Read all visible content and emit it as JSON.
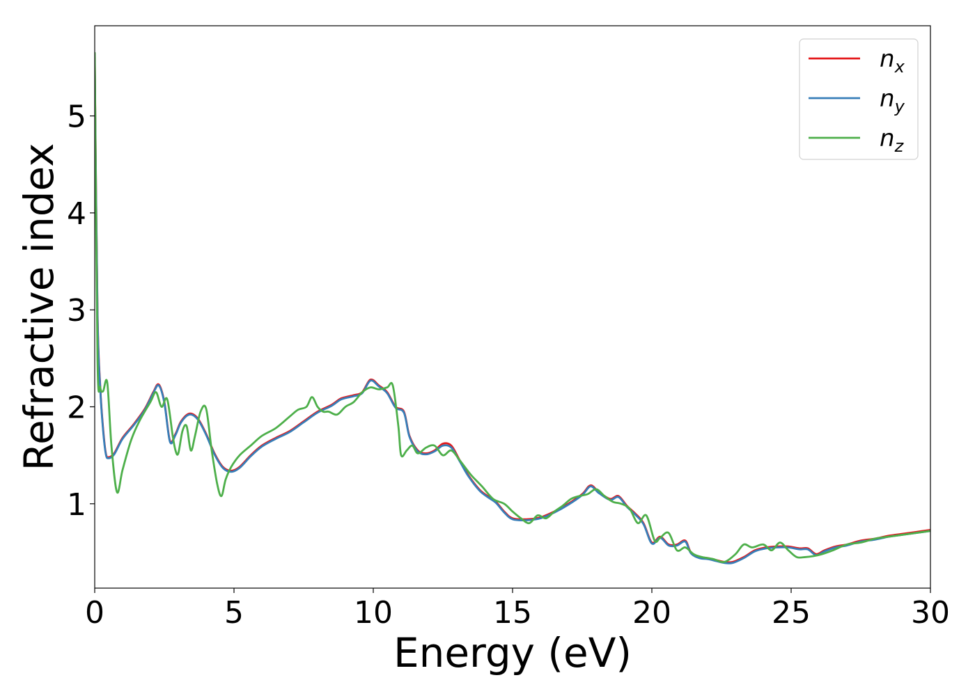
{
  "chart_data": {
    "type": "line",
    "title": "",
    "xlabel": "Energy (eV)",
    "ylabel": "Refractive index",
    "xlim": [
      0,
      30
    ],
    "ylim": [
      0.13,
      5.93
    ],
    "xticks": [
      0,
      5,
      10,
      15,
      20,
      25,
      30
    ],
    "yticks": [
      1,
      2,
      3,
      4,
      5
    ],
    "grid": false,
    "legend_position": "top-right",
    "series": [
      {
        "name": "n_x",
        "label_base": "n",
        "label_sub": "x",
        "color": "#e41a1c",
        "x": [
          0,
          0.1,
          0.2,
          0.3,
          0.4,
          0.5,
          0.7,
          1.0,
          1.4,
          1.8,
          2.1,
          2.3,
          2.5,
          2.7,
          2.9,
          3.1,
          3.4,
          3.7,
          4.0,
          4.3,
          4.6,
          4.9,
          5.2,
          5.6,
          6.0,
          6.5,
          7.0,
          7.5,
          8.0,
          8.5,
          8.8,
          9.0,
          9.3,
          9.6,
          9.9,
          10.2,
          10.5,
          10.8,
          11.1,
          11.3,
          11.6,
          11.9,
          12.2,
          12.5,
          12.8,
          13.1,
          13.4,
          13.8,
          14.1,
          14.4,
          14.7,
          15.0,
          15.5,
          16.0,
          16.5,
          17.0,
          17.5,
          17.8,
          18.1,
          18.5,
          18.8,
          19.1,
          19.4,
          19.7,
          20.0,
          20.3,
          20.6,
          20.9,
          21.2,
          21.4,
          21.7,
          22.0,
          22.3,
          22.6,
          22.9,
          23.3,
          23.7,
          24.1,
          24.5,
          24.9,
          25.3,
          25.6,
          25.9,
          26.2,
          26.6,
          27.0,
          27.5,
          28.0,
          28.5,
          29.0,
          29.5,
          30.0
        ],
        "values": [
          5.6,
          3.0,
          2.2,
          1.78,
          1.52,
          1.48,
          1.52,
          1.68,
          1.82,
          1.98,
          2.15,
          2.23,
          2.05,
          1.65,
          1.72,
          1.85,
          1.93,
          1.88,
          1.72,
          1.52,
          1.38,
          1.34,
          1.38,
          1.5,
          1.6,
          1.68,
          1.75,
          1.85,
          1.95,
          2.02,
          2.08,
          2.1,
          2.12,
          2.15,
          2.28,
          2.22,
          2.15,
          2.0,
          1.95,
          1.7,
          1.55,
          1.52,
          1.55,
          1.62,
          1.6,
          1.45,
          1.3,
          1.15,
          1.08,
          1.02,
          0.92,
          0.85,
          0.84,
          0.86,
          0.92,
          1.0,
          1.1,
          1.19,
          1.12,
          1.05,
          1.08,
          0.98,
          0.9,
          0.8,
          0.6,
          0.66,
          0.58,
          0.58,
          0.62,
          0.5,
          0.45,
          0.44,
          0.42,
          0.4,
          0.4,
          0.45,
          0.52,
          0.55,
          0.56,
          0.56,
          0.54,
          0.54,
          0.48,
          0.52,
          0.56,
          0.58,
          0.62,
          0.64,
          0.67,
          0.69,
          0.71,
          0.73
        ]
      },
      {
        "name": "n_y",
        "label_base": "n",
        "label_sub": "y",
        "color": "#377eb8",
        "x": [
          0,
          0.1,
          0.2,
          0.3,
          0.4,
          0.5,
          0.7,
          1.0,
          1.4,
          1.8,
          2.1,
          2.3,
          2.5,
          2.7,
          2.9,
          3.1,
          3.4,
          3.7,
          4.0,
          4.3,
          4.6,
          4.9,
          5.2,
          5.6,
          6.0,
          6.5,
          7.0,
          7.5,
          8.0,
          8.5,
          8.8,
          9.0,
          9.3,
          9.6,
          9.9,
          10.2,
          10.5,
          10.8,
          11.1,
          11.3,
          11.6,
          11.9,
          12.2,
          12.5,
          12.8,
          13.1,
          13.4,
          13.8,
          14.1,
          14.4,
          14.7,
          15.0,
          15.5,
          16.0,
          16.5,
          17.0,
          17.5,
          17.8,
          18.1,
          18.5,
          18.8,
          19.1,
          19.4,
          19.7,
          20.0,
          20.3,
          20.6,
          20.9,
          21.2,
          21.4,
          21.7,
          22.0,
          22.3,
          22.6,
          22.9,
          23.3,
          23.7,
          24.1,
          24.5,
          24.9,
          25.3,
          25.6,
          25.9,
          26.2,
          26.6,
          27.0,
          27.5,
          28.0,
          28.5,
          29.0,
          29.5,
          30.0
        ],
        "values": [
          5.55,
          2.95,
          2.18,
          1.76,
          1.51,
          1.47,
          1.51,
          1.67,
          1.81,
          1.97,
          2.14,
          2.22,
          2.04,
          1.64,
          1.71,
          1.84,
          1.92,
          1.87,
          1.71,
          1.51,
          1.37,
          1.33,
          1.37,
          1.49,
          1.59,
          1.67,
          1.74,
          1.84,
          1.94,
          2.01,
          2.07,
          2.09,
          2.11,
          2.14,
          2.27,
          2.21,
          2.14,
          1.99,
          1.94,
          1.69,
          1.54,
          1.51,
          1.54,
          1.6,
          1.58,
          1.44,
          1.29,
          1.14,
          1.07,
          1.01,
          0.91,
          0.84,
          0.83,
          0.85,
          0.91,
          0.99,
          1.09,
          1.18,
          1.11,
          1.04,
          1.07,
          0.97,
          0.89,
          0.79,
          0.59,
          0.65,
          0.57,
          0.57,
          0.61,
          0.49,
          0.44,
          0.43,
          0.41,
          0.39,
          0.39,
          0.44,
          0.51,
          0.54,
          0.55,
          0.55,
          0.53,
          0.53,
          0.47,
          0.51,
          0.55,
          0.57,
          0.61,
          0.63,
          0.66,
          0.68,
          0.7,
          0.72
        ]
      },
      {
        "name": "n_z",
        "label_base": "n",
        "label_sub": "z",
        "color": "#4daf4a",
        "x": [
          0,
          0.1,
          0.2,
          0.3,
          0.45,
          0.6,
          0.8,
          1.0,
          1.3,
          1.6,
          2.0,
          2.2,
          2.4,
          2.6,
          2.8,
          2.9,
          3.0,
          3.15,
          3.3,
          3.45,
          3.6,
          3.8,
          4.0,
          4.2,
          4.4,
          4.55,
          4.7,
          4.9,
          5.2,
          5.6,
          6.0,
          6.5,
          7.0,
          7.3,
          7.6,
          7.8,
          8.0,
          8.2,
          8.4,
          8.7,
          9.0,
          9.3,
          9.6,
          9.9,
          10.2,
          10.5,
          10.7,
          10.9,
          11.0,
          11.2,
          11.4,
          11.6,
          11.9,
          12.2,
          12.5,
          12.8,
          13.1,
          13.5,
          13.9,
          14.3,
          14.7,
          15.0,
          15.3,
          15.6,
          15.9,
          16.2,
          16.5,
          16.8,
          17.1,
          17.4,
          17.7,
          18.0,
          18.3,
          18.6,
          18.9,
          19.2,
          19.5,
          19.8,
          20.1,
          20.3,
          20.6,
          20.9,
          21.2,
          21.5,
          21.8,
          22.2,
          22.6,
          23.0,
          23.3,
          23.6,
          24.0,
          24.3,
          24.6,
          24.9,
          25.2,
          25.5,
          25.8,
          26.1,
          26.5,
          27.0,
          27.5,
          28.0,
          28.5,
          29.0,
          29.5,
          30.0
        ],
        "values": [
          5.65,
          2.5,
          2.2,
          2.16,
          2.25,
          1.6,
          1.12,
          1.35,
          1.65,
          1.85,
          2.05,
          2.15,
          2.0,
          2.08,
          1.7,
          1.55,
          1.52,
          1.75,
          1.8,
          1.55,
          1.7,
          1.95,
          1.98,
          1.55,
          1.2,
          1.08,
          1.25,
          1.38,
          1.5,
          1.6,
          1.7,
          1.78,
          1.9,
          1.97,
          2.0,
          2.1,
          2.0,
          1.95,
          1.95,
          1.92,
          2.0,
          2.05,
          2.15,
          2.2,
          2.18,
          2.2,
          2.22,
          1.8,
          1.5,
          1.55,
          1.6,
          1.52,
          1.58,
          1.6,
          1.5,
          1.55,
          1.45,
          1.3,
          1.18,
          1.05,
          1.0,
          0.92,
          0.85,
          0.8,
          0.88,
          0.85,
          0.92,
          0.98,
          1.05,
          1.08,
          1.1,
          1.15,
          1.08,
          1.02,
          1.0,
          0.95,
          0.8,
          0.88,
          0.62,
          0.65,
          0.7,
          0.52,
          0.55,
          0.48,
          0.45,
          0.43,
          0.4,
          0.48,
          0.58,
          0.55,
          0.58,
          0.52,
          0.6,
          0.52,
          0.45,
          0.45,
          0.46,
          0.48,
          0.52,
          0.58,
          0.6,
          0.64,
          0.66,
          0.68,
          0.7,
          0.72
        ]
      }
    ]
  }
}
